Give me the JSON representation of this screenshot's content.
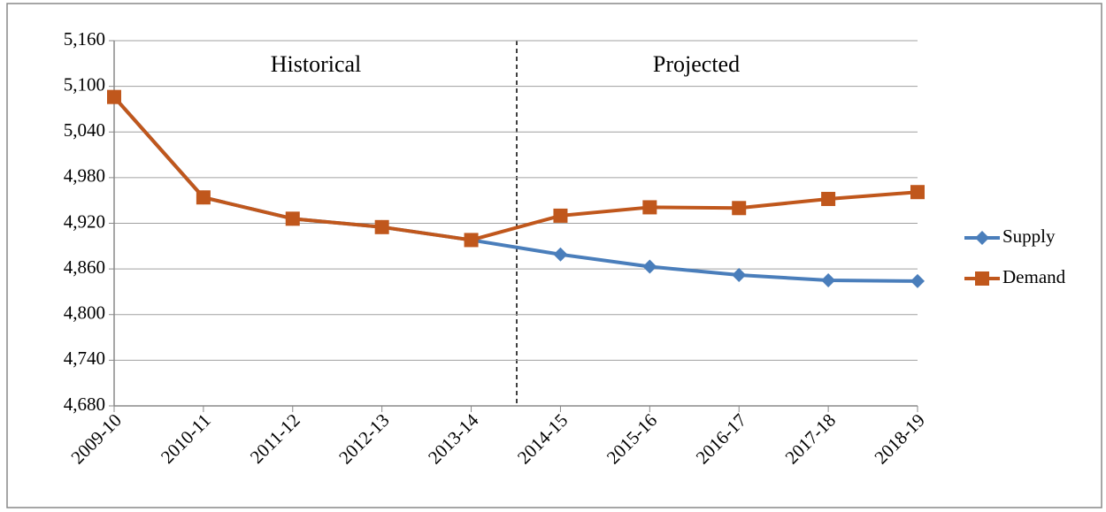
{
  "chart_data": {
    "type": "line",
    "categories": [
      "2009-10",
      "2010-11",
      "2011-12",
      "2012-13",
      "2013-14",
      "2014-15",
      "2015-16",
      "2016-17",
      "2017-18",
      "2018-19"
    ],
    "series": [
      {
        "name": "Supply",
        "color": "#4a7ebb",
        "marker": "diamond",
        "values": [
          5086,
          4954,
          4926,
          4915,
          4898,
          4879,
          4863,
          4852,
          4845,
          4844
        ]
      },
      {
        "name": "Demand",
        "color": "#c0571c",
        "marker": "square",
        "values": [
          5086,
          4954,
          4926,
          4915,
          4898,
          4930,
          4941,
          4940,
          4952,
          4961
        ]
      }
    ],
    "annotations": [
      "Historical",
      "Projected"
    ],
    "ylim": [
      4680,
      5160
    ],
    "yticks": [
      {
        "value": 4680,
        "label": "4,680"
      },
      {
        "value": 4740,
        "label": "4,740"
      },
      {
        "value": 4800,
        "label": "4,800"
      },
      {
        "value": 4860,
        "label": "4,860"
      },
      {
        "value": 4920,
        "label": "4,920"
      },
      {
        "value": 4980,
        "label": "4,980"
      },
      {
        "value": 5040,
        "label": "5,040"
      },
      {
        "value": 5100,
        "label": "5,100"
      },
      {
        "value": 5160,
        "label": "5,160"
      }
    ],
    "grid": true,
    "legend": "right"
  }
}
